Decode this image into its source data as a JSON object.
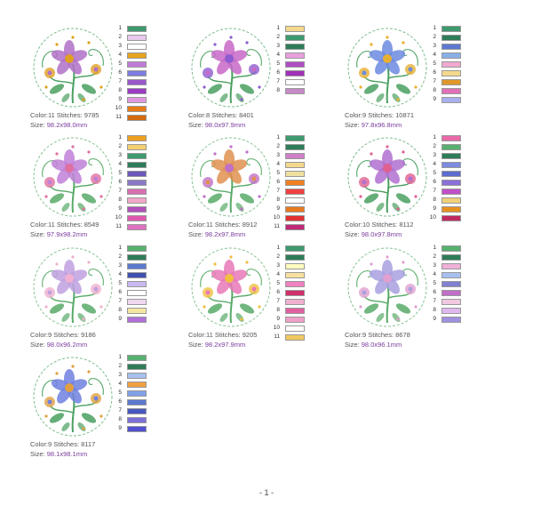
{
  "labels": {
    "color": "Color:",
    "stitches": "Stitches:",
    "size": "Size:"
  },
  "designs": [
    {
      "color": "11",
      "stitches": "9785",
      "size": "98.2x98.0mm",
      "main": "#b070c8",
      "accent": "#e0a020",
      "leaf": "#4aa060",
      "swatches": [
        "#3c9a6e",
        "#e8c8ec",
        "#ffffff",
        "#e6a41e",
        "#c07ad8",
        "#7c7ce0",
        "#9a58cc",
        "#9a3cc4",
        "#e098dc",
        "#e87a14",
        "#d46a10"
      ]
    },
    {
      "color": "8",
      "stitches": "8401",
      "size": "98.0x97.9mm",
      "main": "#c868c8",
      "accent": "#8c5cd0",
      "leaf": "#4aa060",
      "swatches": [
        "#f4d88c",
        "#3c9a6e",
        "#2e7c58",
        "#e8a0dc",
        "#b04cc4",
        "#a030b8",
        "#ffffff",
        "#c68ac8"
      ]
    },
    {
      "color": "9",
      "stitches": "10871",
      "size": "97.8x96.8mm",
      "main": "#6c8ae0",
      "accent": "#e8b030",
      "leaf": "#4aa060",
      "swatches": [
        "#3c9a6e",
        "#2e7c58",
        "#5c78d0",
        "#8ab0e8",
        "#f0a8d0",
        "#f4d88c",
        "#e0982a",
        "#e070b8",
        "#a8b0f0"
      ]
    },
    {
      "color": "11",
      "stitches": "8549",
      "size": "97.9x98.2mm",
      "main": "#c080d8",
      "accent": "#e070a0",
      "leaf": "#58aa68",
      "swatches": [
        "#f0a020",
        "#f4d070",
        "#3c9a6e",
        "#2e7c58",
        "#6c58b8",
        "#8c78c8",
        "#d870b0",
        "#f0a8c8",
        "#b050b8",
        "#e058b0",
        "#e070c0"
      ]
    },
    {
      "color": "11",
      "stitches": "8912",
      "size": "98.2x97.8mm",
      "main": "#e09050",
      "accent": "#c070c8",
      "leaf": "#58aa68",
      "swatches": [
        "#3c9a6e",
        "#2e7c58",
        "#d080c8",
        "#f4d88c",
        "#f0e0a0",
        "#f08020",
        "#f04040",
        "#ffffff",
        "#e87a20",
        "#e03030",
        "#c02878"
      ]
    },
    {
      "color": "10",
      "stitches": "8112",
      "size": "98.0x97.8mm",
      "main": "#b070d0",
      "accent": "#e06090",
      "leaf": "#4aa060",
      "swatches": [
        "#e86aa8",
        "#58b070",
        "#2e7c58",
        "#7c8ce0",
        "#5c6cd0",
        "#8a70d8",
        "#c050c8",
        "#f0d078",
        "#e89020",
        "#c02860"
      ]
    },
    {
      "color": "9",
      "stitches": "9186",
      "size": "98.0x96.2mm",
      "main": "#c0a0e0",
      "accent": "#f0b0d0",
      "leaf": "#58aa68",
      "swatches": [
        "#58b070",
        "#2e7c58",
        "#5c78d0",
        "#4050b0",
        "#c8b8f0",
        "#ffffff",
        "#f0d8f0",
        "#f4e8a0",
        "#b070d8"
      ]
    },
    {
      "color": "11",
      "stitches": "9205",
      "size": "98.2x97.9mm",
      "main": "#e878b8",
      "accent": "#f0c040",
      "leaf": "#58aa68",
      "swatches": [
        "#3c9a6e",
        "#2e7c58",
        "#fffcc0",
        "#f8e0a0",
        "#f080c0",
        "#d0306c",
        "#f0b0d0",
        "#e060a0",
        "#f0a0c8",
        "#ffffff",
        "#f0c860"
      ]
    },
    {
      "color": "9",
      "stitches": "8678",
      "size": "98.0x96.1mm",
      "main": "#a8a0e0",
      "accent": "#e0a0d0",
      "leaf": "#58aa68",
      "swatches": [
        "#58b070",
        "#2e7c58",
        "#f0b0d8",
        "#a8c0f0",
        "#8080d0",
        "#c070c8",
        "#f0c8e0",
        "#e0b8f0",
        "#a090e0"
      ]
    },
    {
      "color": "9",
      "stitches": "8117",
      "size": "98.1x98.1mm",
      "main": "#7080e0",
      "accent": "#e0a040",
      "leaf": "#4aa060",
      "swatches": [
        "#58b070",
        "#2e7c58",
        "#a8c0f0",
        "#f0a040",
        "#80a0e8",
        "#5c78d0",
        "#4858c0",
        "#7c70d8",
        "#5050d0"
      ]
    }
  ],
  "footer": {
    "page": "- 1 -"
  }
}
